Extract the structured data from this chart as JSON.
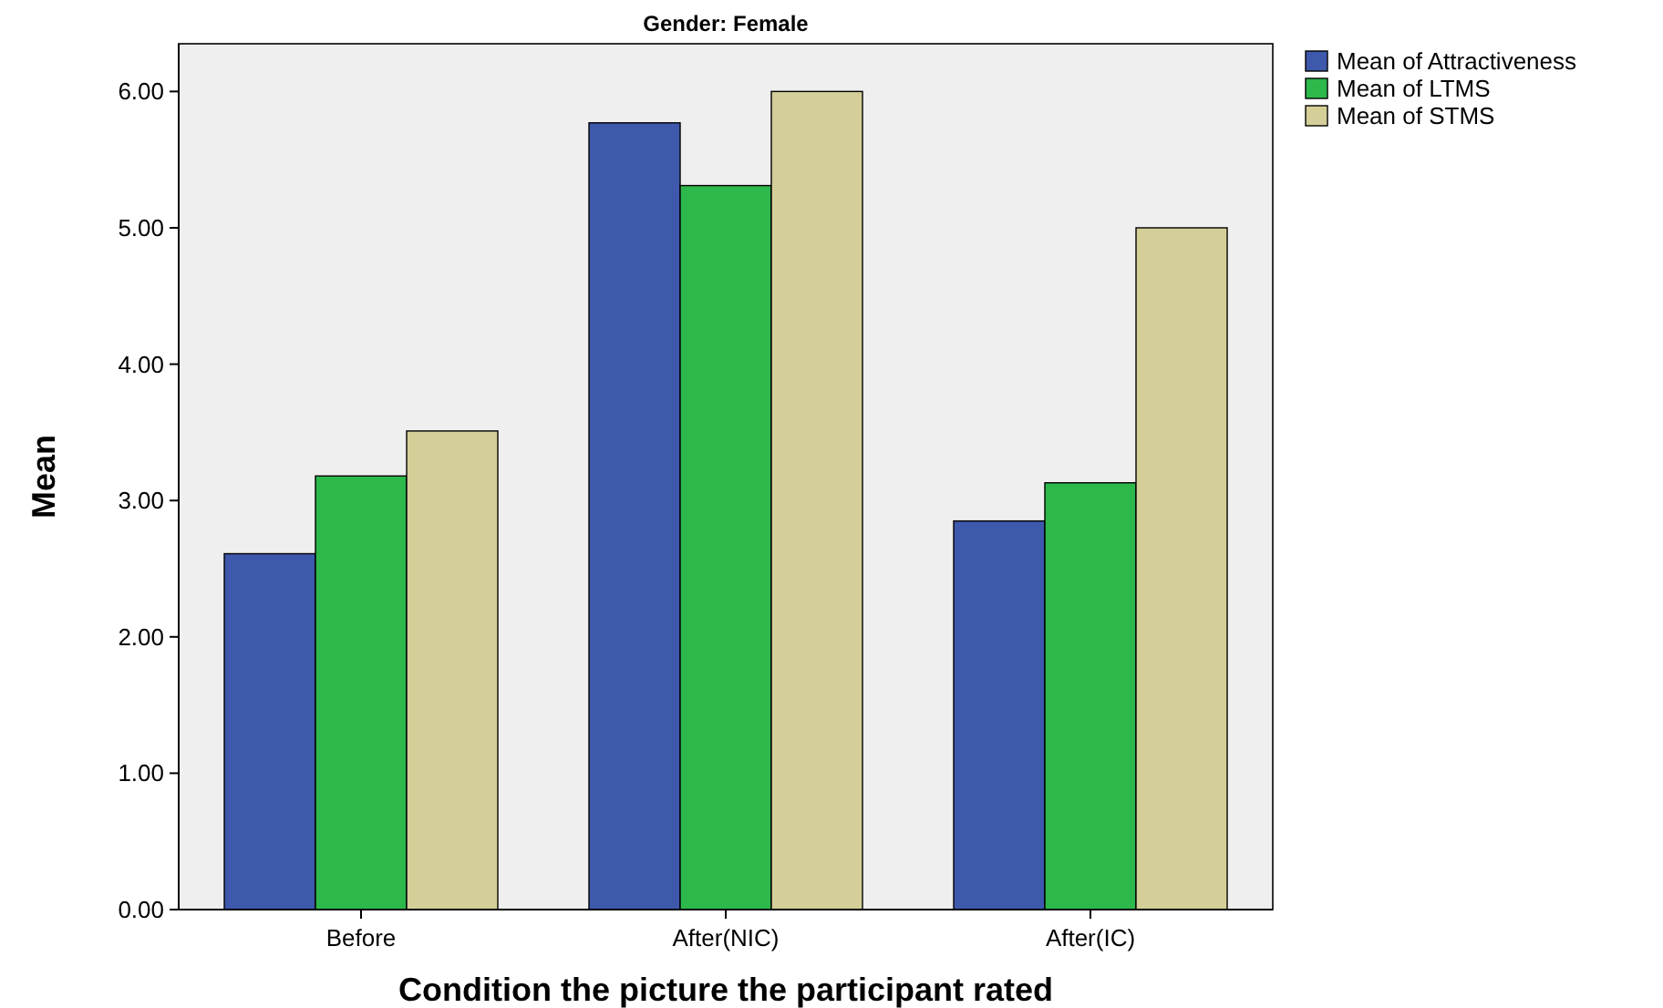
{
  "chart_data": {
    "type": "bar",
    "title": "Gender: Female",
    "xlabel": "Condition the picture the participant rated",
    "ylabel": "Mean",
    "categories": [
      "Before",
      "After(NIC)",
      "After(IC)"
    ],
    "series": [
      {
        "name": "Mean of Attractiveness",
        "color": "#3e58ac",
        "values": [
          2.61,
          5.77,
          2.85
        ]
      },
      {
        "name": "Mean of LTMS",
        "color": "#2db84b",
        "values": [
          3.18,
          5.31,
          3.13
        ]
      },
      {
        "name": "Mean of STMS",
        "color": "#d4cf98",
        "values": [
          3.51,
          6.0,
          5.0
        ]
      }
    ],
    "ylim": [
      0,
      6.35
    ],
    "yticks": [
      {
        "value": 0,
        "label": "0.00"
      },
      {
        "value": 1,
        "label": "1.00"
      },
      {
        "value": 2,
        "label": "2.00"
      },
      {
        "value": 3,
        "label": "3.00"
      },
      {
        "value": 4,
        "label": "4.00"
      },
      {
        "value": 5,
        "label": "5.00"
      },
      {
        "value": 6,
        "label": "6.00"
      }
    ],
    "grid": false,
    "legend": "top right"
  }
}
